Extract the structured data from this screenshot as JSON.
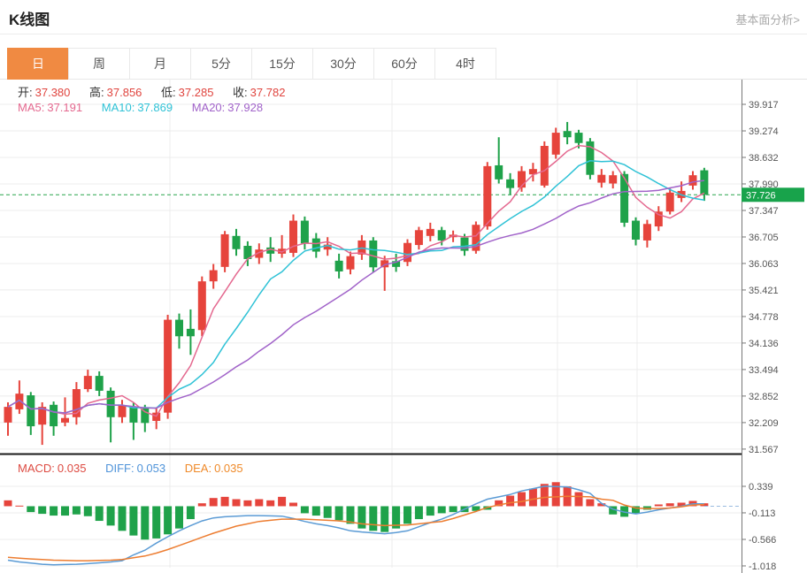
{
  "header": {
    "title": "K线图",
    "link": "基本面分析>"
  },
  "tabs": {
    "items": [
      {
        "label": "日",
        "active": true
      },
      {
        "label": "周",
        "active": false
      },
      {
        "label": "月",
        "active": false
      },
      {
        "label": "5分",
        "active": false
      },
      {
        "label": "15分",
        "active": false
      },
      {
        "label": "30分",
        "active": false
      },
      {
        "label": "60分",
        "active": false
      },
      {
        "label": "4时",
        "active": false
      }
    ],
    "active_color": "#f08a42"
  },
  "legend": {
    "ohlc": [
      {
        "label": "开:",
        "value": "37.380"
      },
      {
        "label": "高:",
        "value": "37.856"
      },
      {
        "label": "低:",
        "value": "37.285"
      },
      {
        "label": "收:",
        "value": "37.782"
      }
    ],
    "ma": [
      {
        "label": "MA5:",
        "value": "37.191",
        "color": "#e4688f"
      },
      {
        "label": "MA10:",
        "value": "37.869",
        "color": "#2fc2d6"
      },
      {
        "label": "MA20:",
        "value": "37.928",
        "color": "#a163c9"
      }
    ],
    "macd": [
      {
        "label": "MACD:",
        "value": "0.035",
        "color": "#dd4b42"
      },
      {
        "label": "DIFF:",
        "value": "0.053",
        "color": "#4f93d9"
      },
      {
        "label": "DEA:",
        "value": "0.035",
        "color": "#ef8a2a"
      }
    ]
  },
  "price_axis": {
    "tick_labels": [
      "39.917",
      "39.274",
      "38.632",
      "37.990",
      "37.347",
      "36.705",
      "36.063",
      "35.421",
      "34.778",
      "34.136",
      "33.494",
      "32.852",
      "32.209",
      "31.567"
    ],
    "current_label": "37.726",
    "current_badge_color": "#18a34b"
  },
  "macd_axis": {
    "tick_labels": [
      "0.339",
      "-0.113",
      "-0.566",
      "-1.018"
    ]
  },
  "chart_data": {
    "type": "candlestick+macd",
    "title": "K线图",
    "legend_position": "top-left",
    "grid": true,
    "up_color": "#e6443c",
    "down_color": "#1fa24a",
    "price_ylim": [
      31.2,
      40.6
    ],
    "price_ticks": [
      39.917,
      39.274,
      38.632,
      37.99,
      37.347,
      36.705,
      36.063,
      35.421,
      34.778,
      34.136,
      33.494,
      32.852,
      32.209,
      31.567
    ],
    "current_price": 37.726,
    "x_gridlines": [
      192,
      443,
      630,
      720
    ],
    "candles_ohlc_order": "open,high,low,close",
    "candles": [
      [
        32.21,
        32.7,
        31.89,
        32.59
      ],
      [
        32.53,
        33.23,
        32.42,
        32.91
      ],
      [
        32.87,
        32.95,
        31.91,
        32.12
      ],
      [
        32.16,
        32.7,
        31.67,
        32.59
      ],
      [
        32.64,
        32.72,
        31.89,
        32.12
      ],
      [
        32.21,
        32.82,
        32.12,
        32.32
      ],
      [
        32.34,
        33.19,
        32.16,
        33.02
      ],
      [
        33.02,
        33.49,
        32.95,
        33.34
      ],
      [
        33.34,
        33.45,
        32.85,
        32.98
      ],
      [
        32.98,
        33.06,
        31.73,
        32.34
      ],
      [
        32.34,
        32.76,
        32.2,
        32.62
      ],
      [
        32.6,
        32.7,
        31.79,
        32.21
      ],
      [
        32.55,
        32.64,
        31.98,
        32.2
      ],
      [
        32.25,
        32.58,
        32.05,
        32.45
      ],
      [
        32.45,
        34.82,
        32.3,
        34.7
      ],
      [
        34.7,
        34.85,
        34.0,
        34.3
      ],
      [
        34.48,
        34.95,
        33.85,
        34.3
      ],
      [
        34.45,
        35.75,
        34.3,
        35.63
      ],
      [
        35.63,
        36.05,
        35.45,
        35.9
      ],
      [
        35.98,
        36.85,
        35.85,
        36.77
      ],
      [
        36.73,
        36.9,
        36.25,
        36.41
      ],
      [
        36.49,
        36.6,
        36.0,
        36.17
      ],
      [
        36.2,
        36.55,
        36.05,
        36.4
      ],
      [
        36.45,
        36.7,
        36.1,
        36.3
      ],
      [
        36.3,
        36.75,
        36.2,
        36.42
      ],
      [
        36.32,
        37.25,
        36.22,
        37.1
      ],
      [
        37.1,
        37.2,
        36.4,
        36.55
      ],
      [
        36.67,
        36.8,
        36.2,
        36.35
      ],
      [
        36.4,
        36.7,
        36.25,
        36.52
      ],
      [
        36.13,
        36.3,
        35.7,
        35.87
      ],
      [
        35.92,
        36.35,
        35.8,
        36.24
      ],
      [
        36.28,
        36.75,
        36.15,
        36.62
      ],
      [
        36.62,
        36.7,
        35.85,
        35.97
      ],
      [
        35.97,
        36.25,
        35.4,
        36.14
      ],
      [
        36.12,
        36.3,
        35.86,
        35.98
      ],
      [
        36.1,
        36.65,
        36.0,
        36.56
      ],
      [
        36.51,
        36.95,
        36.4,
        36.87
      ],
      [
        36.73,
        37.05,
        36.6,
        36.9
      ],
      [
        36.87,
        36.95,
        36.5,
        36.62
      ],
      [
        36.7,
        36.86,
        36.58,
        36.76
      ],
      [
        36.69,
        36.78,
        36.25,
        36.37
      ],
      [
        36.37,
        37.08,
        36.3,
        37.0
      ],
      [
        36.96,
        38.52,
        36.88,
        38.42
      ],
      [
        38.44,
        39.12,
        38.0,
        38.1
      ],
      [
        38.1,
        38.25,
        37.72,
        37.89
      ],
      [
        37.9,
        38.42,
        37.8,
        38.3
      ],
      [
        38.22,
        38.5,
        38.05,
        38.35
      ],
      [
        37.95,
        39.02,
        37.9,
        38.91
      ],
      [
        38.7,
        39.35,
        38.6,
        39.23
      ],
      [
        39.27,
        39.49,
        38.95,
        39.12
      ],
      [
        39.23,
        39.3,
        38.85,
        38.98
      ],
      [
        39.02,
        39.1,
        38.1,
        38.21
      ],
      [
        38.02,
        38.35,
        37.9,
        38.21
      ],
      [
        38.0,
        38.3,
        37.88,
        38.2
      ],
      [
        38.23,
        38.3,
        36.95,
        37.05
      ],
      [
        37.1,
        37.18,
        36.5,
        36.64
      ],
      [
        36.62,
        37.12,
        36.45,
        37.02
      ],
      [
        36.96,
        37.45,
        36.85,
        37.32
      ],
      [
        37.32,
        37.88,
        37.25,
        37.78
      ],
      [
        37.65,
        38.05,
        37.55,
        37.82
      ],
      [
        37.95,
        38.3,
        37.85,
        38.2
      ],
      [
        38.32,
        38.38,
        37.58,
        37.726
      ]
    ],
    "ma_lines": [
      {
        "name": "MA5",
        "period": 5,
        "color": "#e4688f"
      },
      {
        "name": "MA10",
        "period": 10,
        "color": "#2fc2d6"
      },
      {
        "name": "MA20",
        "period": 20,
        "color": "#a163c9"
      }
    ],
    "macd": {
      "ticks": [
        0.339,
        -0.113,
        -0.566,
        -1.018
      ],
      "hist_up_color": "#e6443c",
      "hist_down_color": "#1fa24a",
      "diff_color": "#5b9bd5",
      "dea_color": "#ed7d31",
      "hist": [
        0.1,
        0.01,
        -0.1,
        -0.13,
        -0.16,
        -0.16,
        -0.14,
        -0.17,
        -0.25,
        -0.33,
        -0.42,
        -0.5,
        -0.57,
        -0.55,
        -0.48,
        -0.38,
        -0.22,
        0.05,
        0.14,
        0.16,
        0.12,
        0.1,
        0.12,
        0.1,
        0.16,
        0.06,
        -0.12,
        -0.16,
        -0.2,
        -0.24,
        -0.3,
        -0.38,
        -0.42,
        -0.44,
        -0.38,
        -0.3,
        -0.22,
        -0.16,
        -0.12,
        -0.1,
        -0.1,
        -0.08,
        -0.06,
        0.1,
        0.18,
        0.24,
        0.3,
        0.38,
        0.41,
        0.34,
        0.24,
        0.12,
        0.05,
        -0.14,
        -0.18,
        -0.12,
        -0.06,
        0.03,
        0.05,
        0.06,
        0.09,
        0.05
      ],
      "diff": [
        -0.92,
        -0.95,
        -0.97,
        -0.99,
        -1.0,
        -0.995,
        -0.99,
        -0.98,
        -0.965,
        -0.95,
        -0.93,
        -0.83,
        -0.75,
        -0.63,
        -0.52,
        -0.42,
        -0.33,
        -0.25,
        -0.2,
        -0.18,
        -0.17,
        -0.16,
        -0.16,
        -0.165,
        -0.17,
        -0.21,
        -0.26,
        -0.3,
        -0.33,
        -0.37,
        -0.42,
        -0.44,
        -0.455,
        -0.47,
        -0.45,
        -0.42,
        -0.35,
        -0.28,
        -0.22,
        -0.14,
        -0.05,
        0.04,
        0.12,
        0.16,
        0.2,
        0.26,
        0.3,
        0.34,
        0.335,
        0.33,
        0.28,
        0.22,
        0.05,
        -0.05,
        -0.1,
        -0.13,
        -0.1,
        -0.06,
        -0.03,
        0.0,
        0.04,
        0.04
      ],
      "dea": [
        -0.87,
        -0.885,
        -0.9,
        -0.91,
        -0.92,
        -0.925,
        -0.93,
        -0.93,
        -0.925,
        -0.92,
        -0.91,
        -0.88,
        -0.85,
        -0.8,
        -0.74,
        -0.67,
        -0.6,
        -0.53,
        -0.46,
        -0.4,
        -0.34,
        -0.3,
        -0.26,
        -0.24,
        -0.22,
        -0.22,
        -0.22,
        -0.23,
        -0.24,
        -0.25,
        -0.27,
        -0.3,
        -0.315,
        -0.33,
        -0.325,
        -0.32,
        -0.3,
        -0.28,
        -0.26,
        -0.21,
        -0.15,
        -0.09,
        -0.02,
        0.02,
        0.06,
        0.08,
        0.12,
        0.15,
        0.16,
        0.17,
        0.165,
        0.16,
        0.12,
        0.1,
        0.02,
        -0.03,
        -0.04,
        -0.04,
        -0.03,
        -0.01,
        0.02,
        0.03
      ]
    }
  }
}
